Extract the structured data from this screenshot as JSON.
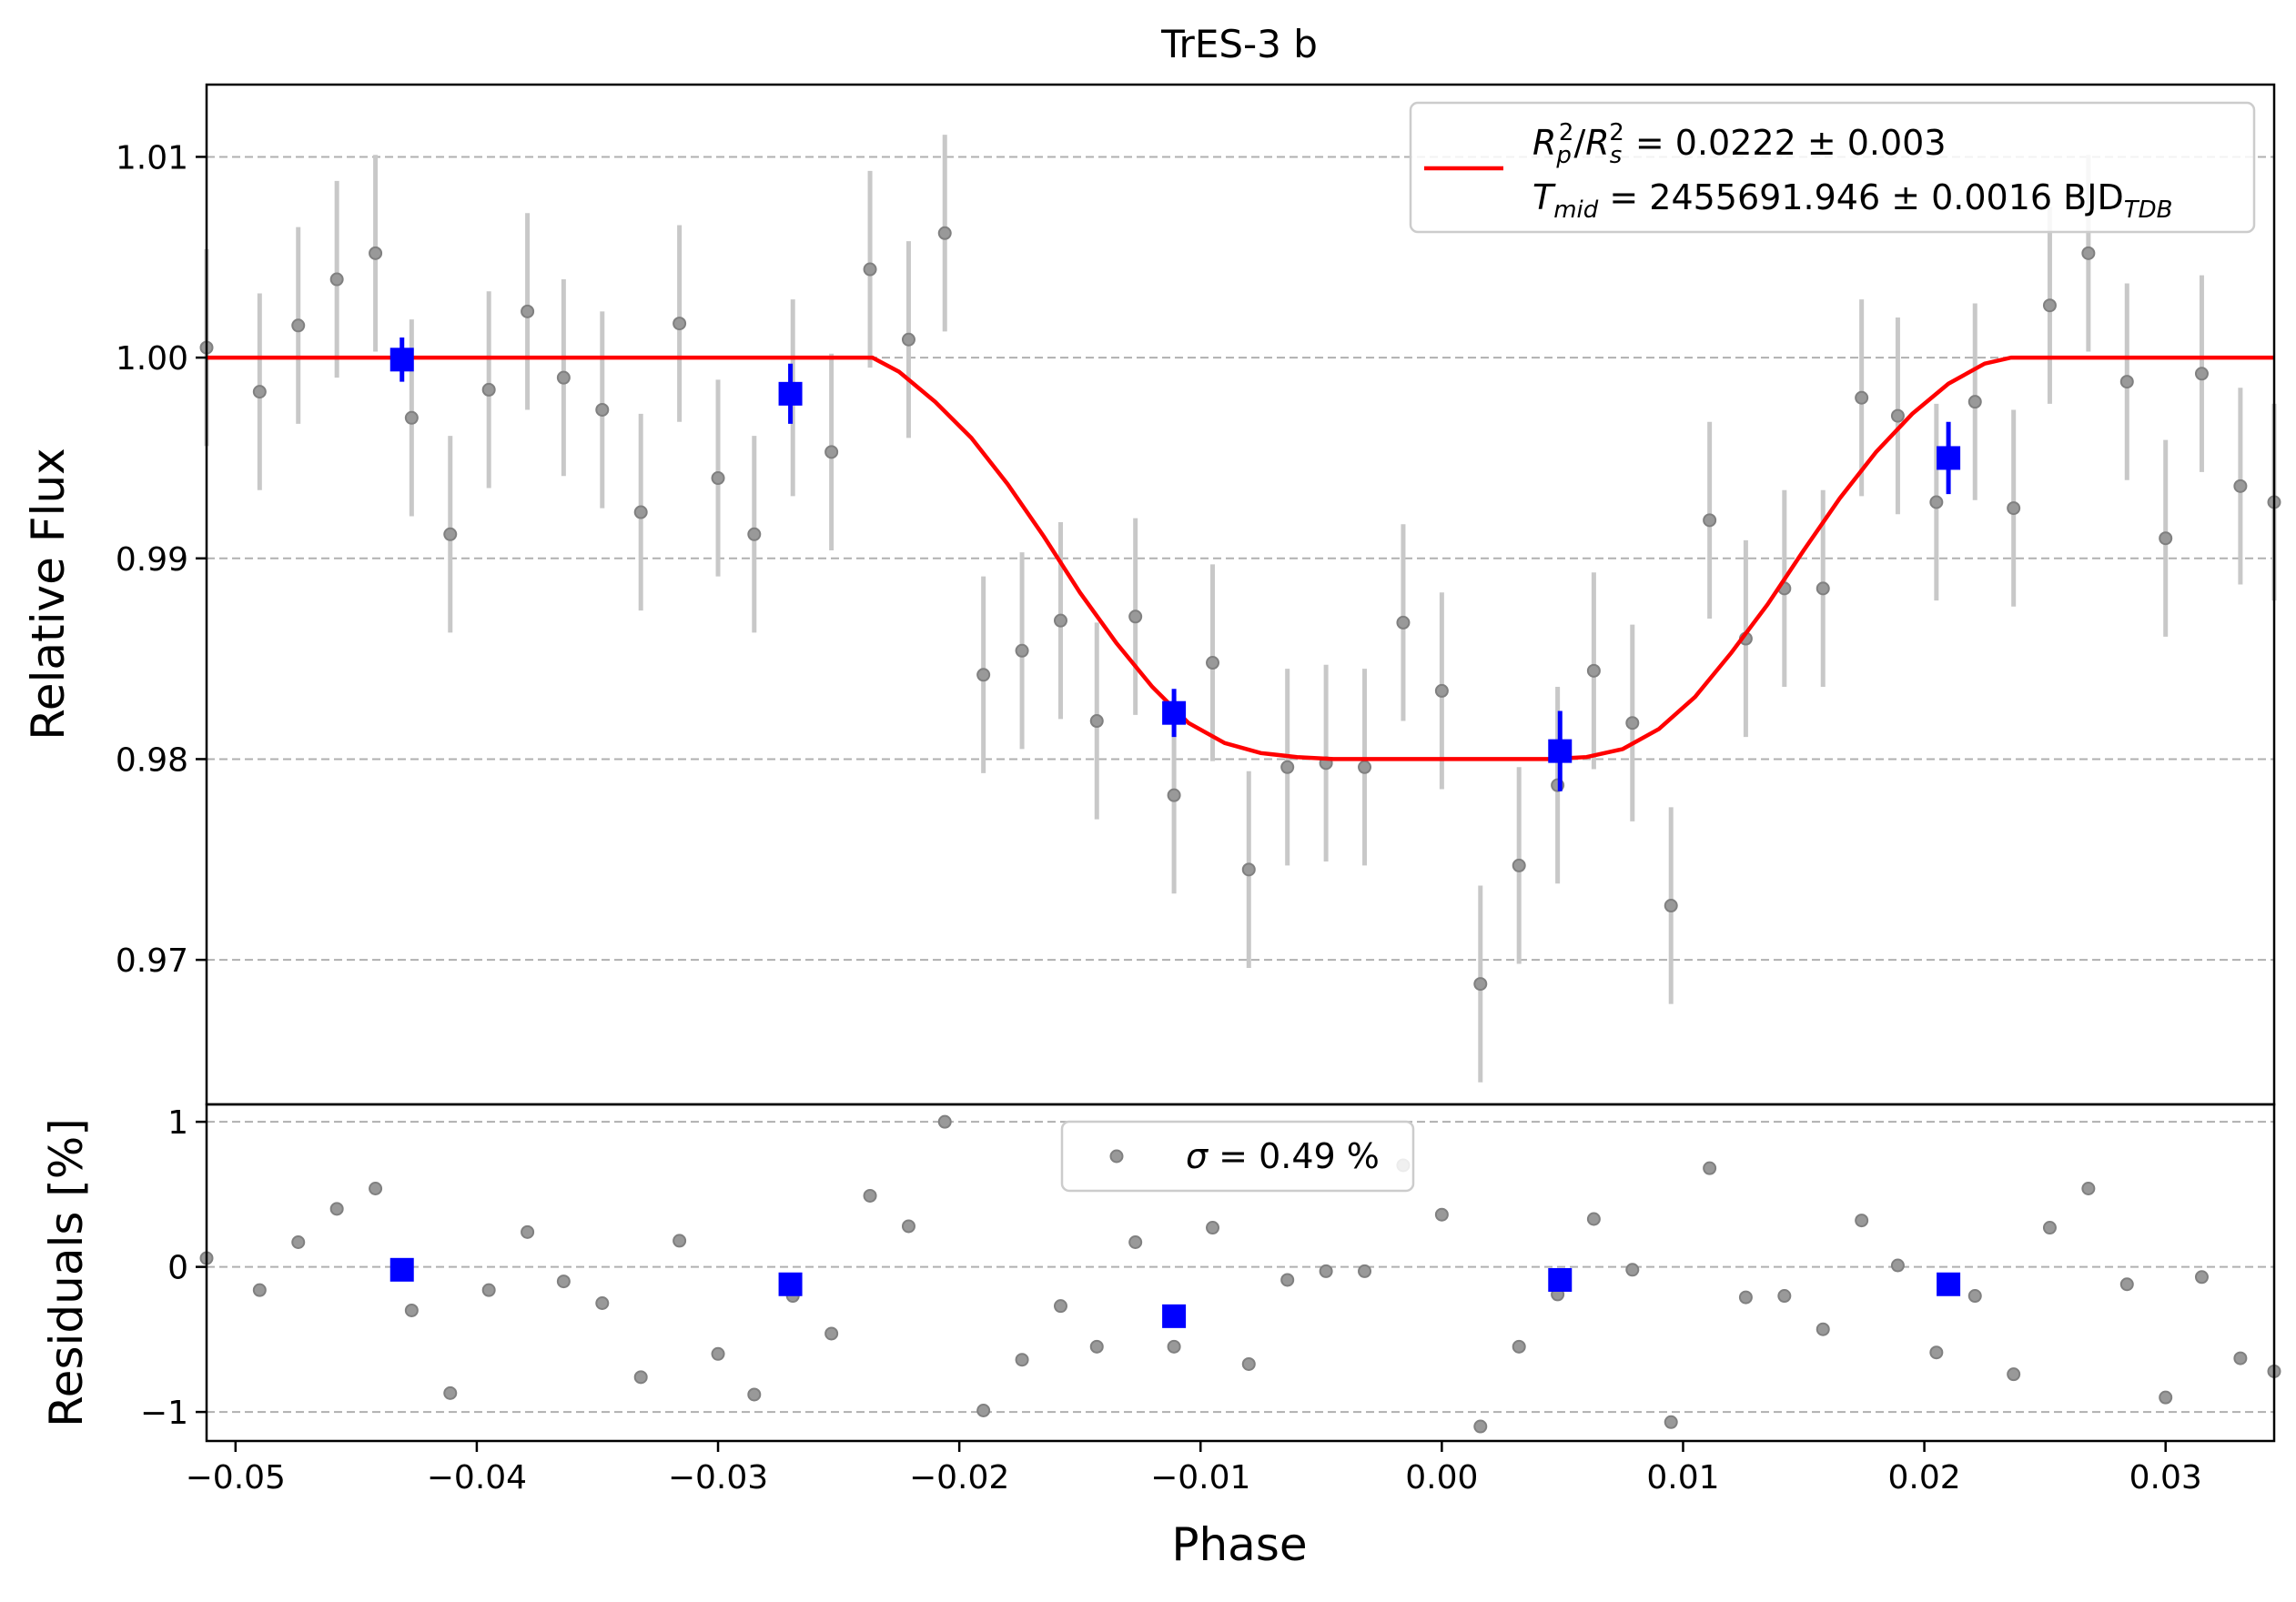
{
  "chart_data": [
    {
      "type": "scatter",
      "panel": "lightcurve",
      "title": "TrES-3 b",
      "xlabel": "",
      "ylabel": "Relative Flux",
      "xlim": [
        -0.0512,
        0.0345
      ],
      "ylim": [
        0.9628,
        1.0136
      ],
      "yticks": [
        0.97,
        0.98,
        0.99,
        1.0,
        1.01
      ],
      "ytick_labels": [
        "0.97",
        "0.98",
        "0.99",
        "1.00",
        "1.01"
      ],
      "grid": "horizontal dashed",
      "legend_position": "top-right",
      "legend": {
        "line1": {
          "lhs_R": "R",
          "sub_p": "p",
          "sup_2a": "2",
          "slash": "/",
          "lhs_R2": "R",
          "sub_s": "s",
          "sup_2b": "2",
          "rhs": " = 0.0222 ± 0.003"
        },
        "line2": {
          "T": "T",
          "sub_mid": "mid",
          "rhs": " = 2455691.946 ± 0.0016 BJD",
          "sub_tdb": "TDB"
        }
      },
      "model": {
        "name": "transit model",
        "color": "#ff0000",
        "x": [
          -0.0512,
          -0.0236,
          -0.0225,
          -0.021,
          -0.0195,
          -0.018,
          -0.0165,
          -0.015,
          -0.0135,
          -0.012,
          -0.0105,
          -0.009,
          -0.0075,
          -0.006,
          -0.0045,
          -0.003,
          -0.0015,
          0.0,
          0.0015,
          0.003,
          0.0045,
          0.006,
          0.0075,
          0.009,
          0.0105,
          0.012,
          0.0135,
          0.015,
          0.0165,
          0.018,
          0.0195,
          0.021,
          0.0225,
          0.0236,
          0.0345
        ],
        "y": [
          1.0,
          1.0,
          0.9993,
          0.9978,
          0.996,
          0.9937,
          0.9911,
          0.9883,
          0.9858,
          0.9836,
          0.9818,
          0.9808,
          0.9803,
          0.9801,
          0.98,
          0.98,
          0.98,
          0.98,
          0.98,
          0.98,
          0.98,
          0.9801,
          0.9805,
          0.9815,
          0.9831,
          0.9853,
          0.9877,
          0.9904,
          0.993,
          0.9953,
          0.9972,
          0.9987,
          0.9997,
          1.0,
          1.0
        ]
      },
      "raw": {
        "color": "#808080",
        "x": [
          -0.0512,
          -0.049,
          -0.0474,
          -0.0458,
          -0.0442,
          -0.0427,
          -0.0411,
          -0.0395,
          -0.0379,
          -0.0364,
          -0.0348,
          -0.0332,
          -0.0316,
          -0.03,
          -0.0285,
          -0.0269,
          -0.0253,
          -0.0237,
          -0.0221,
          -0.0206,
          -0.019,
          -0.0174,
          -0.0158,
          -0.0143,
          -0.0127,
          -0.0111,
          -0.0095,
          -0.008,
          -0.0064,
          -0.0048,
          -0.0032,
          -0.0016,
          0.0,
          0.0016,
          0.0032,
          0.0048,
          0.0063,
          0.0079,
          0.0095,
          0.0111,
          0.0126,
          0.0142,
          0.0158,
          0.0174,
          0.0189,
          0.0205,
          0.0221,
          0.0237,
          0.0252,
          0.0268,
          0.0284,
          0.03,
          0.0315,
          0.0331,
          0.0345
        ],
        "y": [
          1.0005,
          0.9983,
          1.0016,
          1.0039,
          1.0052,
          0.997,
          0.9912,
          0.9984,
          1.0023,
          0.999,
          0.9974,
          0.9923,
          1.0017,
          0.994,
          0.9912,
          0.998,
          0.9953,
          1.0044,
          1.0009,
          1.0062,
          0.9842,
          0.9854,
          0.9869,
          0.9819,
          0.9871,
          0.9782,
          0.9848,
          0.9745,
          0.9796,
          0.9798,
          0.9796,
          0.9868,
          0.9834,
          0.9688,
          0.9747,
          0.9787,
          0.9844,
          0.9818,
          0.9727,
          0.9919,
          0.986,
          0.9885,
          0.9885,
          0.998,
          0.9971,
          0.9928,
          0.9978,
          0.9925,
          1.0026,
          1.0052,
          0.9988,
          0.991,
          0.9992,
          0.9936,
          0.9928
        ],
        "err": 0.0049
      },
      "binned": {
        "color": "#0000ff",
        "x": [
          -0.0431,
          -0.027,
          -0.0111,
          0.0049,
          0.021
        ],
        "y": [
          0.9999,
          0.9982,
          0.9823,
          0.9804,
          0.995
        ],
        "err": [
          0.0011,
          0.0015,
          0.0012,
          0.002,
          0.0018
        ]
      }
    },
    {
      "type": "scatter",
      "panel": "residuals",
      "xlabel": "Phase",
      "ylabel": "Residuals [%]",
      "xlim": [
        -0.0512,
        0.0345
      ],
      "ylim": [
        -1.2,
        1.12
      ],
      "xticks": [
        -0.05,
        -0.04,
        -0.03,
        -0.02,
        -0.01,
        0.0,
        0.01,
        0.02,
        0.03
      ],
      "xtick_labels": [
        "−0.05",
        "−0.04",
        "−0.03",
        "−0.02",
        "−0.01",
        "0.00",
        "0.01",
        "0.02",
        "0.03"
      ],
      "yticks": [
        -1,
        0,
        1
      ],
      "ytick_labels": [
        "−1",
        "0",
        "1"
      ],
      "grid": "horizontal dashed",
      "legend_position": "top-center",
      "legend": {
        "sigma": "σ",
        "rest": " = 0.49 %"
      },
      "raw": {
        "color": "#808080",
        "x": [
          -0.0512,
          -0.049,
          -0.0474,
          -0.0458,
          -0.0442,
          -0.0427,
          -0.0411,
          -0.0395,
          -0.0379,
          -0.0364,
          -0.0348,
          -0.0332,
          -0.0316,
          -0.03,
          -0.0285,
          -0.0269,
          -0.0253,
          -0.0237,
          -0.0221,
          -0.0206,
          -0.019,
          -0.0174,
          -0.0158,
          -0.0143,
          -0.0127,
          -0.0111,
          -0.0095,
          -0.008,
          -0.0064,
          -0.0048,
          -0.0032,
          -0.0016,
          0.0,
          0.0016,
          0.0032,
          0.0048,
          0.0063,
          0.0079,
          0.0095,
          0.0111,
          0.0126,
          0.0142,
          0.0158,
          0.0174,
          0.0189,
          0.0205,
          0.0221,
          0.0237,
          0.0252,
          0.0268,
          0.0284,
          0.03,
          0.0315,
          0.0331,
          0.0345
        ],
        "y": [
          0.06,
          -0.16,
          0.17,
          0.4,
          0.54,
          -0.3,
          -0.87,
          -0.16,
          0.24,
          -0.1,
          -0.25,
          -0.76,
          0.18,
          -0.6,
          -0.88,
          -0.2,
          -0.46,
          0.49,
          0.28,
          1.0,
          -0.99,
          -0.64,
          -0.27,
          -0.55,
          0.17,
          -0.55,
          0.27,
          -0.67,
          -0.09,
          -0.03,
          -0.03,
          0.7,
          0.36,
          -1.1,
          -0.55,
          -0.19,
          0.33,
          -0.02,
          -1.07,
          0.68,
          -0.21,
          -0.2,
          -0.43,
          0.32,
          0.01,
          -0.59,
          -0.2,
          -0.74,
          0.27,
          0.54,
          -0.12,
          -0.9,
          -0.07,
          -0.63,
          -0.72
        ]
      },
      "binned": {
        "color": "#0000ff",
        "x": [
          -0.0431,
          -0.027,
          -0.0111,
          0.0049,
          0.021
        ],
        "y": [
          -0.02,
          -0.12,
          -0.34,
          -0.09,
          -0.12
        ]
      }
    }
  ]
}
